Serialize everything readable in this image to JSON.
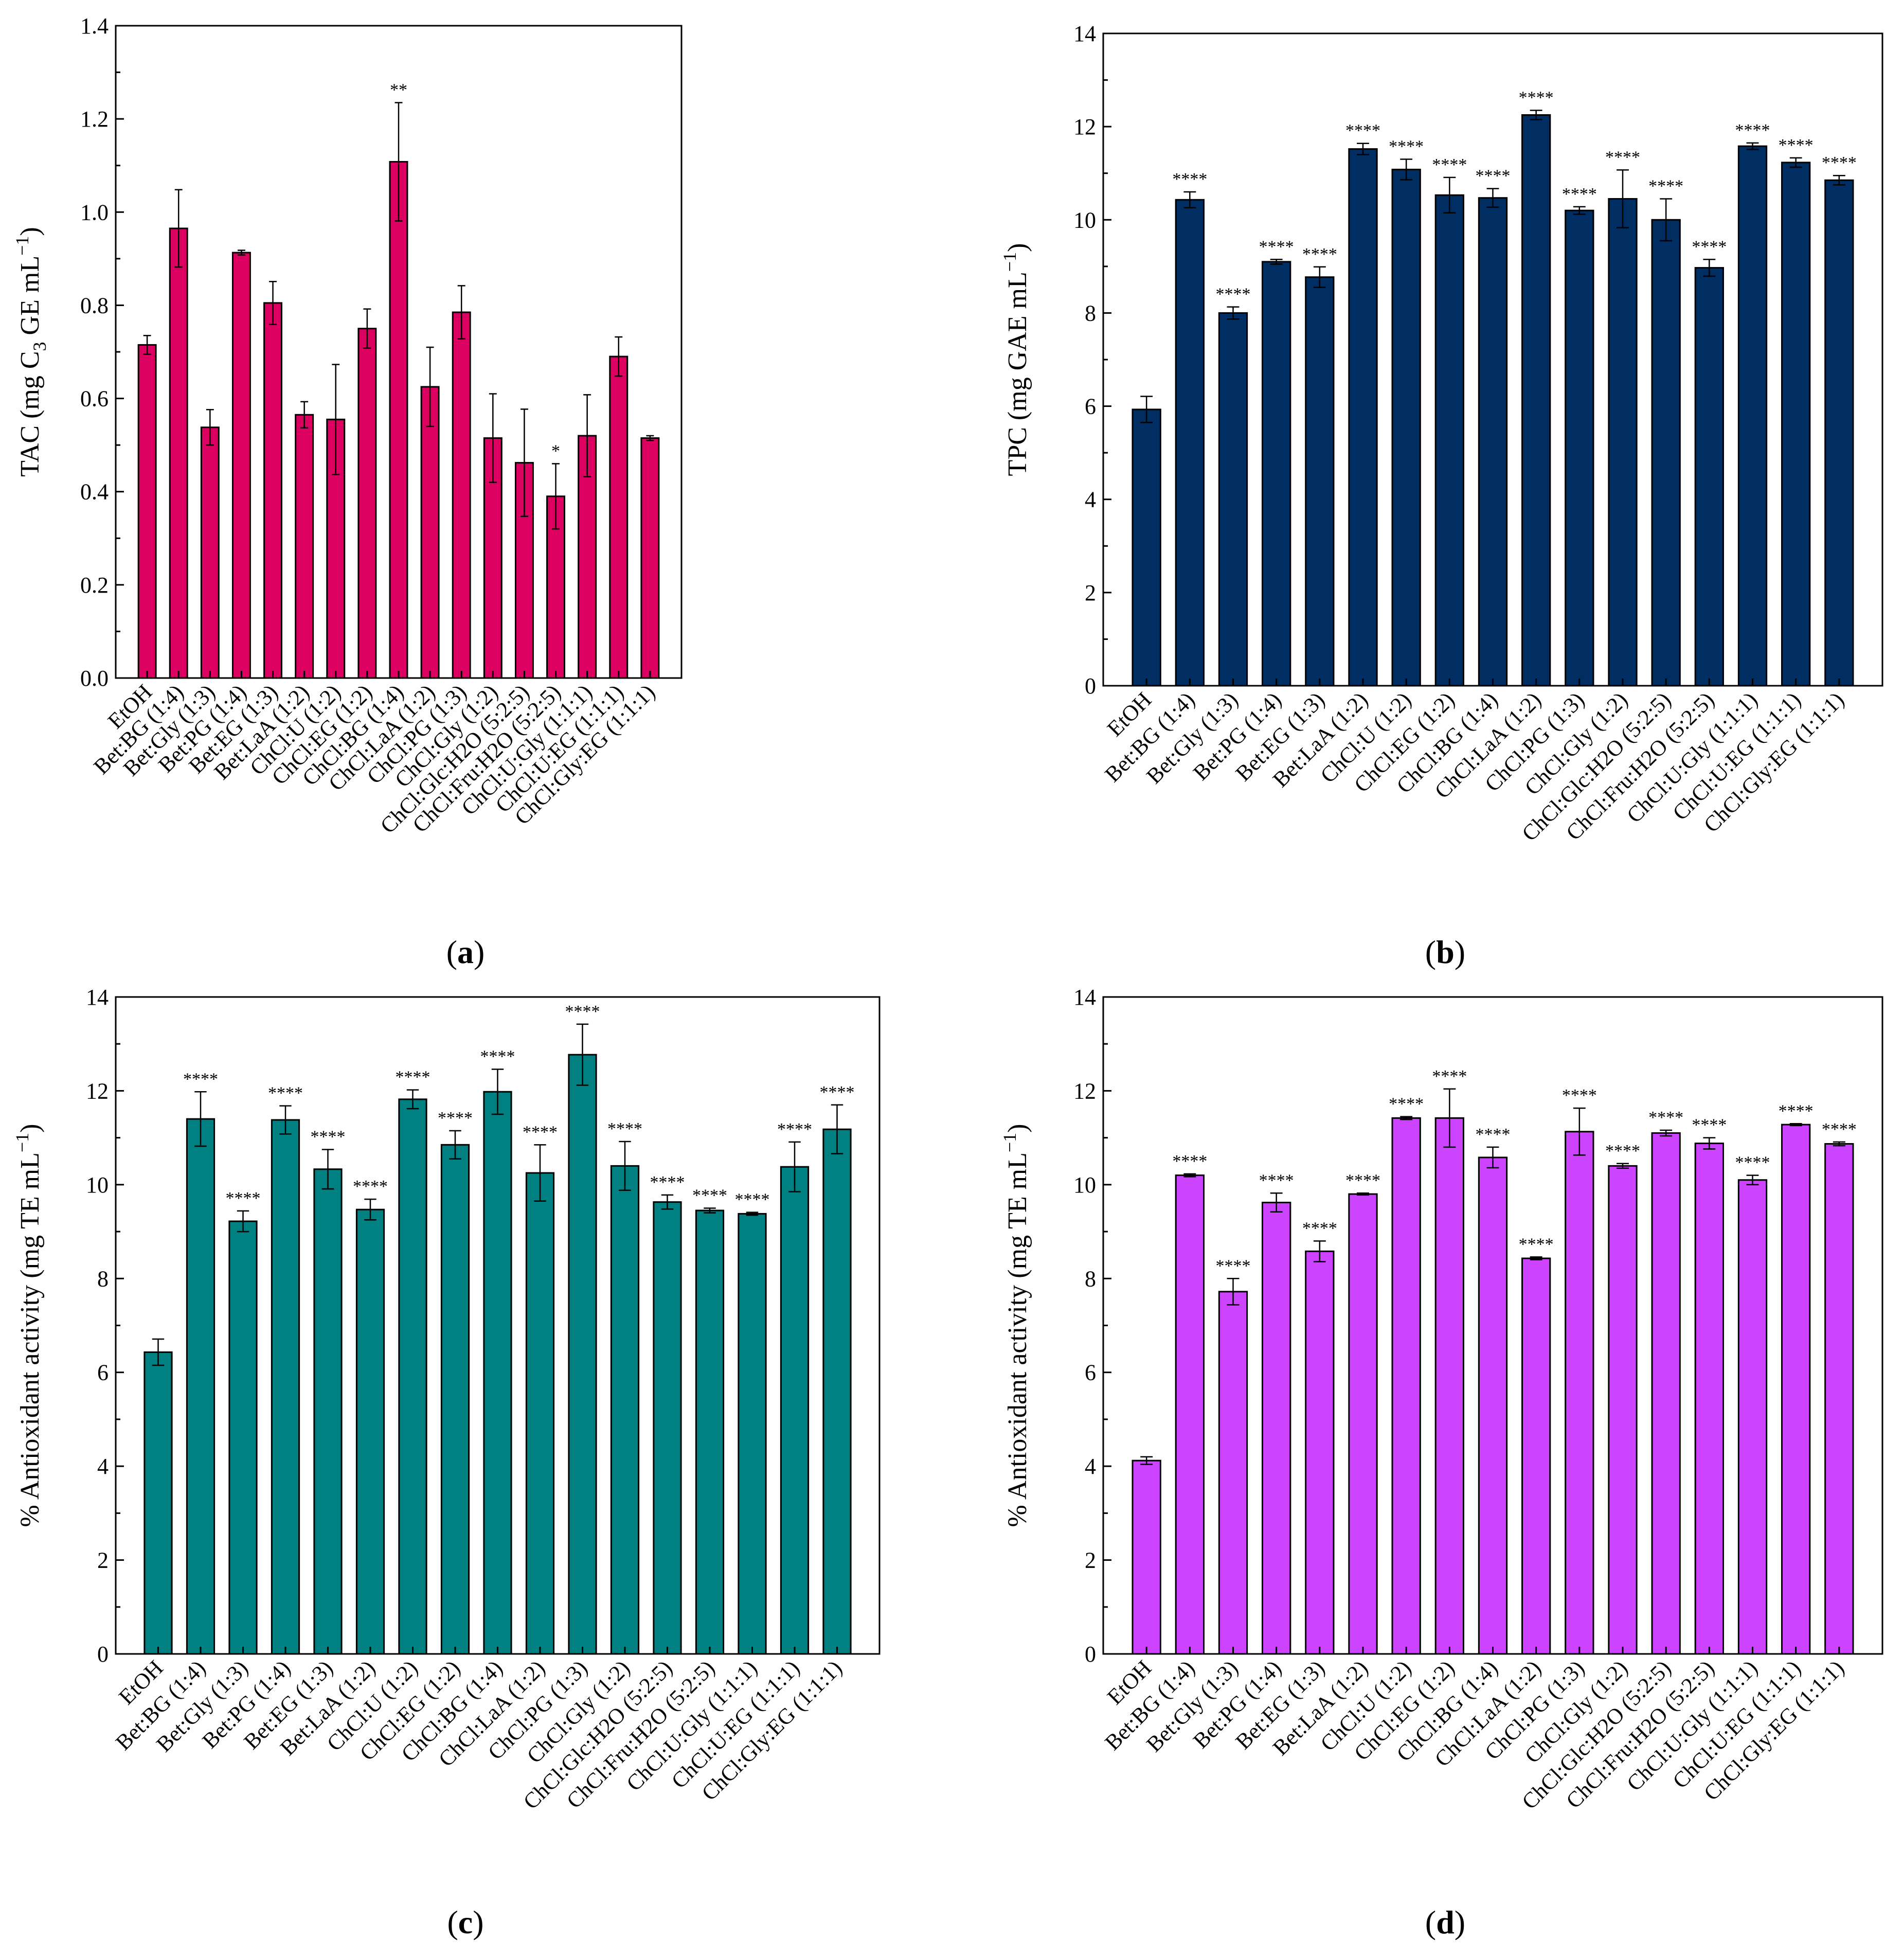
{
  "chart_data": [
    {
      "panel": "a",
      "panel_label": [
        "(",
        "a",
        ")"
      ],
      "type": "bar",
      "color": "#dc0060",
      "ylabel": "TAC (mg C3 GE mL−1)",
      "ylabel_parts": {
        "pre": "TAC (mg C",
        "sub": "3",
        "mid": " GE mL",
        "sup": "−1",
        "post": ")"
      },
      "ylim": [
        0,
        1.4
      ],
      "yticks": [
        "0.0",
        "0.2",
        "0.4",
        "0.6",
        "0.8",
        "1.0",
        "1.2",
        "1.4"
      ],
      "categories": [
        "EtOH",
        "Bet:BG (1:4)",
        "Bet:Gly (1:3)",
        "Bet:PG (1:4)",
        "Bet:EG (1:3)",
        "Bet:LaA (1:2)",
        "ChCl:U (1:2)",
        "ChCl:EG (1:2)",
        "ChCl:BG (1:4)",
        "ChCl:LaA (1:2)",
        "ChCl:PG (1:3)",
        "ChCl:Gly (1:2)",
        "ChCl:Glc:H2O (5:2:5)",
        "ChCl:Fru:H2O (5:2:5)",
        "ChCl:U:Gly (1:1:1)",
        "ChCl:U:EG (1:1:1)",
        "ChCl:Gly:EG (1:1:1)"
      ],
      "values": [
        0.715,
        0.965,
        0.538,
        0.913,
        0.805,
        0.565,
        0.555,
        0.75,
        1.108,
        0.625,
        0.785,
        0.515,
        0.462,
        0.39,
        0.52,
        0.69,
        0.515
      ],
      "errors": [
        0.02,
        0.083,
        0.038,
        0.005,
        0.046,
        0.028,
        0.118,
        0.042,
        0.127,
        0.085,
        0.057,
        0.095,
        0.115,
        0.07,
        0.088,
        0.042,
        0.005
      ],
      "significance": [
        "",
        "",
        "",
        "",
        "",
        "",
        "",
        "",
        "**",
        "",
        "",
        "",
        "",
        "*",
        "",
        "",
        ""
      ]
    },
    {
      "panel": "b",
      "panel_label": [
        "(",
        "b",
        ")"
      ],
      "type": "bar",
      "color": "#002d62",
      "ylabel": "TPC (mg GAE mL−1)",
      "ylabel_parts": {
        "pre": "TPC (mg GAE mL",
        "sub": "",
        "mid": "",
        "sup": "−1",
        "post": ")"
      },
      "ylim": [
        0,
        14
      ],
      "yticks": [
        "0",
        "2",
        "4",
        "6",
        "8",
        "10",
        "12",
        "14"
      ],
      "categories": [
        "EtOH",
        "Bet:BG (1:4)",
        "Bet:Gly (1:3)",
        "Bet:PG (1:4)",
        "Bet:EG (1:3)",
        "Bet:LaA (1:2)",
        "ChCl:U (1:2)",
        "ChCl:EG (1:2)",
        "ChCl:BG (1:4)",
        "ChCl:LaA (1:2)",
        "ChCl:PG (1:3)",
        "ChCl:Gly (1:2)",
        "ChCl:Glc:H2O (5:2:5)",
        "ChCl:Fru:H2O (5:2:5)",
        "ChCl:U:Gly (1:1:1)",
        "ChCl:U:EG (1:1:1)",
        "ChCl:Gly:EG (1:1:1)"
      ],
      "values": [
        5.93,
        10.43,
        8.0,
        9.1,
        8.77,
        11.52,
        11.08,
        10.53,
        10.47,
        12.25,
        10.2,
        10.45,
        10.0,
        8.97,
        11.58,
        11.23,
        10.85
      ],
      "errors": [
        0.28,
        0.17,
        0.13,
        0.05,
        0.22,
        0.12,
        0.22,
        0.38,
        0.2,
        0.1,
        0.08,
        0.62,
        0.45,
        0.18,
        0.07,
        0.1,
        0.1
      ],
      "significance": [
        "",
        "****",
        "****",
        "****",
        "****",
        "****",
        "****",
        "****",
        "****",
        "****",
        "****",
        "****",
        "****",
        "****",
        "****",
        "****",
        "****"
      ]
    },
    {
      "panel": "c",
      "panel_label": [
        "(",
        "c",
        ")"
      ],
      "type": "bar",
      "color": "#008080",
      "ylabel": "% Antioxidant activity (mg TE mL−1)",
      "ylabel_parts": {
        "pre": "% Antioxidant activity (mg TE mL",
        "sub": "",
        "mid": "",
        "sup": "−1",
        "post": ")"
      },
      "ylim": [
        0,
        14
      ],
      "yticks": [
        "0",
        "2",
        "4",
        "6",
        "8",
        "10",
        "12",
        "14"
      ],
      "categories": [
        "EtOH",
        "Bet:BG (1:4)",
        "Bet:Gly (1:3)",
        "Bet:PG (1:4)",
        "Bet:EG (1:3)",
        "Bet:LaA (1:2)",
        "ChCl:U (1:2)",
        "ChCl:EG (1:2)",
        "ChCl:BG (1:4)",
        "ChCl:LaA (1:2)",
        "ChCl:PG (1:3)",
        "ChCl:Gly (1:2)",
        "ChCl:Glc:H2O (5:2:5)",
        "ChCl:Fru:H2O (5:2:5)",
        "ChCl:U:Gly (1:1:1)",
        "ChCl:U:EG (1:1:1)",
        "ChCl:Gly:EG (1:1:1)"
      ],
      "values": [
        6.43,
        11.4,
        9.22,
        11.38,
        10.33,
        9.47,
        11.82,
        10.85,
        11.98,
        10.25,
        12.77,
        10.4,
        9.63,
        9.45,
        9.38,
        10.38,
        11.18
      ],
      "errors": [
        0.28,
        0.58,
        0.22,
        0.3,
        0.42,
        0.22,
        0.2,
        0.3,
        0.48,
        0.6,
        0.65,
        0.52,
        0.15,
        0.05,
        0.03,
        0.53,
        0.52
      ],
      "significance": [
        "",
        "****",
        "****",
        "****",
        "****",
        "****",
        "****",
        "****",
        "****",
        "****",
        "****",
        "****",
        "****",
        "****",
        "****",
        "****",
        "****"
      ]
    },
    {
      "panel": "d",
      "panel_label": [
        "(",
        "d",
        ")"
      ],
      "type": "bar",
      "color": "#cc44ff",
      "ylabel": "% Antioxidant activity (mg TE mL−1)",
      "ylabel_parts": {
        "pre": "% Antioxidant activity (mg TE mL",
        "sub": "",
        "mid": "",
        "sup": "−1",
        "post": ")"
      },
      "ylim": [
        0,
        14
      ],
      "yticks": [
        "0",
        "2",
        "4",
        "6",
        "8",
        "10",
        "12",
        "14"
      ],
      "categories": [
        "EtOH",
        "Bet:BG (1:4)",
        "Bet:Gly (1:3)",
        "Bet:PG (1:4)",
        "Bet:EG (1:3)",
        "Bet:LaA (1:2)",
        "ChCl:U (1:2)",
        "ChCl:EG (1:2)",
        "ChCl:BG (1:4)",
        "ChCl:LaA (1:2)",
        "ChCl:PG (1:3)",
        "ChCl:Gly (1:2)",
        "ChCl:Glc:H2O (5:2:5)",
        "ChCl:Fru:H2O (5:2:5)",
        "ChCl:U:Gly (1:1:1)",
        "ChCl:U:EG (1:1:1)",
        "ChCl:Gly:EG (1:1:1)"
      ],
      "values": [
        4.12,
        10.2,
        7.72,
        9.62,
        8.58,
        9.8,
        11.42,
        11.42,
        10.58,
        8.43,
        11.13,
        10.4,
        11.1,
        10.88,
        10.1,
        11.28,
        10.87
      ],
      "errors": [
        0.08,
        0.03,
        0.28,
        0.2,
        0.22,
        0.02,
        0.03,
        0.62,
        0.22,
        0.03,
        0.5,
        0.05,
        0.06,
        0.12,
        0.1,
        0.02,
        0.04
      ],
      "significance": [
        "",
        "****",
        "****",
        "****",
        "****",
        "****",
        "****",
        "****",
        "****",
        "****",
        "****",
        "****",
        "****",
        "****",
        "****",
        "****",
        "****"
      ]
    }
  ]
}
